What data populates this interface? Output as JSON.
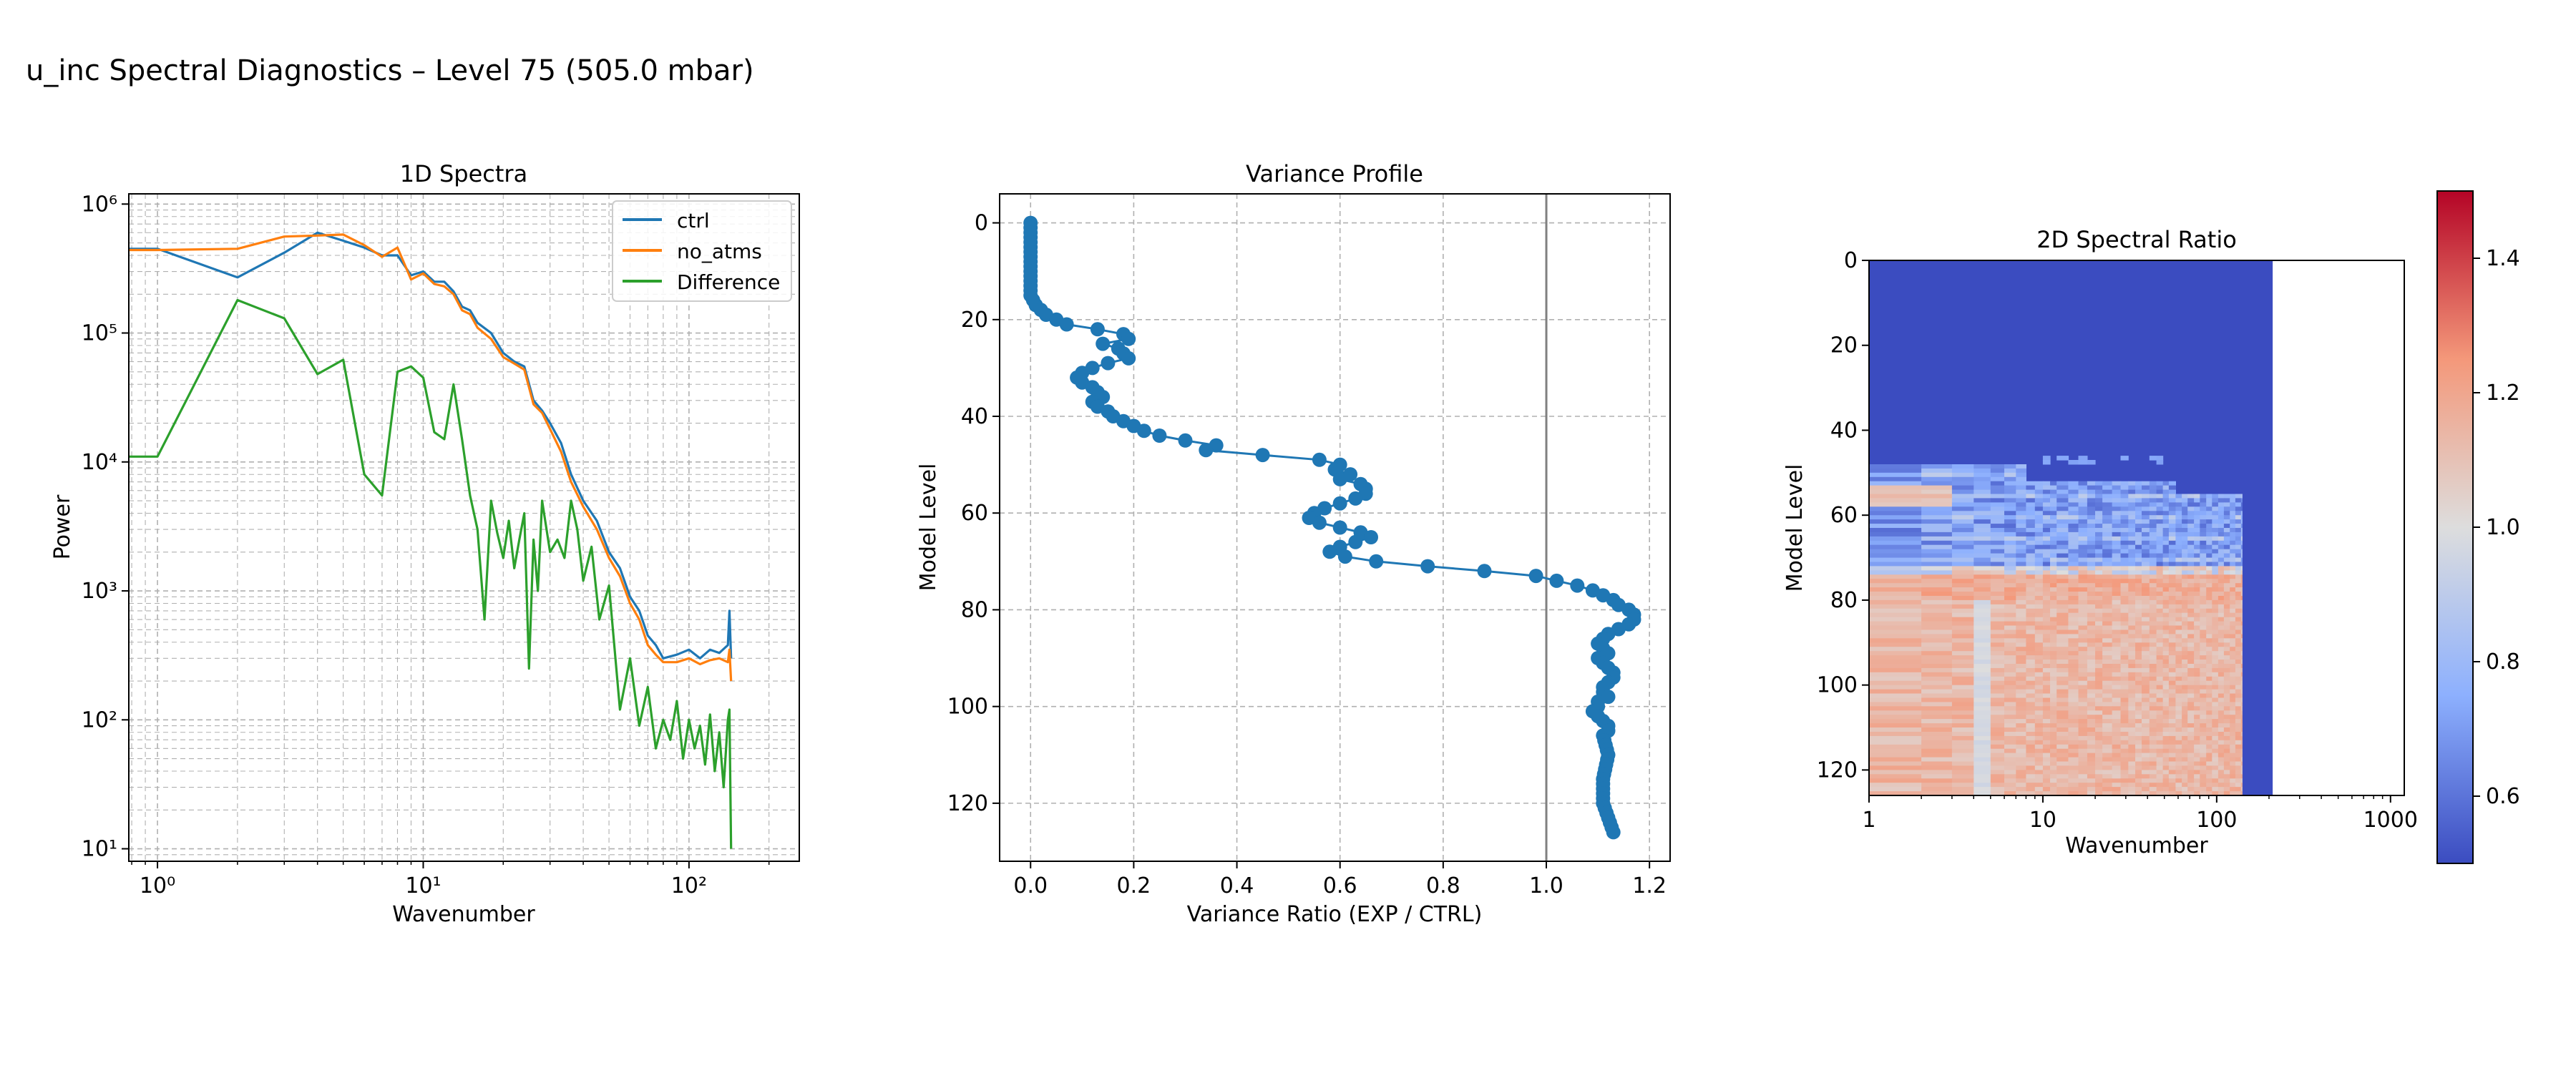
{
  "figure": {
    "title": "u_inc Spectral Diagnostics – Level 75 (505.0 mbar)"
  },
  "colors": {
    "ctrl": "#1f77b4",
    "no_atms": "#ff7f0e",
    "difference": "#2ca02c",
    "profile": "#1f77b4",
    "grid": "#b0b0b0",
    "colormap": "coolwarm"
  },
  "chart_data": [
    {
      "id": "spectra1d",
      "type": "line",
      "title": "1D Spectra",
      "xlabel": "Wavenumber",
      "ylabel": "Power",
      "xscale": "log",
      "yscale": "log",
      "xlim": [
        0.78,
        260
      ],
      "ylim": [
        8,
        1200000
      ],
      "xticks": [
        1,
        10,
        100
      ],
      "xtick_labels": [
        "10⁰",
        "10¹",
        "10²"
      ],
      "yticks": [
        10,
        100,
        1000,
        10000,
        100000,
        1000000
      ],
      "ytick_labels": [
        "10¹",
        "10²",
        "10³",
        "10⁴",
        "10⁵",
        "10⁶"
      ],
      "grid": "major+minor",
      "legend": "upper-right",
      "series": [
        {
          "name": "ctrl",
          "color_key": "ctrl",
          "x": [
            0.78,
            1,
            2,
            3,
            4,
            5,
            6,
            7,
            8,
            9,
            10,
            11,
            12,
            13,
            14,
            15,
            16,
            18,
            20,
            22,
            24,
            26,
            28,
            30,
            33,
            36,
            40,
            45,
            50,
            55,
            60,
            65,
            70,
            75,
            80,
            90,
            100,
            110,
            120,
            130,
            140,
            142,
            144
          ],
          "y": [
            450000,
            450000,
            270000,
            420000,
            600000,
            520000,
            460000,
            400000,
            400000,
            280000,
            300000,
            250000,
            250000,
            210000,
            160000,
            150000,
            120000,
            100000,
            70000,
            60000,
            55000,
            30000,
            25000,
            20000,
            14000,
            8000,
            5000,
            3500,
            2000,
            1500,
            900,
            700,
            450,
            380,
            300,
            320,
            350,
            300,
            350,
            330,
            380,
            700,
            300
          ]
        },
        {
          "name": "no_atms",
          "color_key": "no_atms",
          "x": [
            0.78,
            1,
            2,
            3,
            4,
            5,
            6,
            7,
            8,
            9,
            10,
            11,
            12,
            13,
            14,
            15,
            16,
            18,
            20,
            22,
            24,
            26,
            28,
            30,
            33,
            36,
            40,
            45,
            50,
            55,
            60,
            65,
            70,
            75,
            80,
            90,
            100,
            110,
            120,
            130,
            140,
            142,
            144
          ],
          "y": [
            440000,
            440000,
            450000,
            560000,
            570000,
            580000,
            480000,
            390000,
            460000,
            260000,
            290000,
            240000,
            230000,
            200000,
            150000,
            140000,
            110000,
            90000,
            65000,
            58000,
            52000,
            28000,
            24000,
            18000,
            12000,
            7000,
            4500,
            3000,
            1800,
            1300,
            800,
            600,
            380,
            320,
            280,
            280,
            300,
            270,
            290,
            300,
            280,
            350,
            200
          ]
        },
        {
          "name": "Difference",
          "color_key": "difference",
          "x": [
            0.78,
            1,
            2,
            3,
            4,
            5,
            6,
            7,
            8,
            9,
            10,
            11,
            12,
            13,
            14,
            15,
            16,
            17,
            18,
            19,
            20,
            21,
            22,
            23,
            24,
            25,
            26,
            27,
            28,
            30,
            32,
            34,
            36,
            38,
            40,
            43,
            46,
            50,
            55,
            60,
            65,
            70,
            75,
            80,
            85,
            90,
            95,
            100,
            105,
            110,
            115,
            120,
            125,
            130,
            135,
            140,
            142,
            144
          ],
          "y": [
            11000,
            11000,
            180000,
            130000,
            48000,
            62000,
            8000,
            5500,
            50000,
            55000,
            45000,
            17000,
            15000,
            40000,
            15000,
            5500,
            3000,
            600,
            5000,
            2800,
            1800,
            3500,
            1500,
            2500,
            4000,
            250,
            2500,
            1000,
            5000,
            2000,
            2500,
            1800,
            5000,
            3000,
            1200,
            2200,
            600,
            1100,
            120,
            300,
            90,
            180,
            60,
            100,
            70,
            140,
            50,
            100,
            60,
            90,
            45,
            110,
            40,
            80,
            30,
            100,
            120,
            10
          ]
        }
      ]
    },
    {
      "id": "variance_profile",
      "type": "line",
      "title": "Variance Profile",
      "xlabel": "Variance Ratio (EXP / CTRL)",
      "ylabel": "Model Level",
      "xlim": [
        -0.06,
        1.24
      ],
      "ylim": [
        132,
        -6
      ],
      "y_inverted": true,
      "xticks": [
        0,
        0.2,
        0.4,
        0.6,
        0.8,
        1.0,
        1.2
      ],
      "xtick_labels": [
        "0.0",
        "0.2",
        "0.4",
        "0.6",
        "0.8",
        "1.0",
        "1.2"
      ],
      "yticks": [
        0,
        20,
        40,
        60,
        80,
        100,
        120
      ],
      "ytick_labels": [
        "0",
        "20",
        "40",
        "60",
        "80",
        "100",
        "120"
      ],
      "grid": "dashed",
      "reference_line_x": 1.0,
      "markers": true,
      "anchors": {
        "level": [
          0,
          5,
          10,
          15,
          17,
          19,
          20,
          21,
          22,
          23,
          24,
          25,
          26,
          27,
          28,
          29,
          30,
          31,
          32,
          33,
          34,
          35,
          36,
          37,
          38,
          39,
          40,
          41,
          42,
          43,
          44,
          45,
          46,
          47,
          48,
          49,
          50,
          51,
          52,
          53,
          54,
          55,
          56,
          57,
          58,
          59,
          60,
          61,
          62,
          63,
          64,
          65,
          66,
          67,
          68,
          69,
          70,
          71,
          72,
          73,
          74,
          75,
          76,
          77,
          78,
          79,
          80,
          81,
          82,
          83,
          84,
          85,
          86,
          87,
          88,
          89,
          90,
          91,
          92,
          93,
          94,
          95,
          96,
          97,
          98,
          99,
          100,
          101,
          102,
          103,
          104,
          105,
          106,
          110,
          115,
          120,
          123,
          126
        ],
        "ratio": [
          0.0,
          0.0,
          0.0,
          0.0,
          0.01,
          0.03,
          0.05,
          0.07,
          0.13,
          0.18,
          0.19,
          0.14,
          0.17,
          0.18,
          0.19,
          0.15,
          0.12,
          0.1,
          0.09,
          0.1,
          0.12,
          0.13,
          0.14,
          0.12,
          0.13,
          0.15,
          0.16,
          0.18,
          0.2,
          0.22,
          0.25,
          0.3,
          0.36,
          0.34,
          0.45,
          0.56,
          0.6,
          0.59,
          0.62,
          0.6,
          0.64,
          0.65,
          0.65,
          0.63,
          0.6,
          0.57,
          0.55,
          0.54,
          0.56,
          0.6,
          0.64,
          0.66,
          0.63,
          0.6,
          0.58,
          0.61,
          0.67,
          0.77,
          0.88,
          0.98,
          1.02,
          1.06,
          1.09,
          1.11,
          1.13,
          1.14,
          1.16,
          1.17,
          1.17,
          1.16,
          1.14,
          1.12,
          1.11,
          1.1,
          1.11,
          1.12,
          1.1,
          1.11,
          1.12,
          1.13,
          1.13,
          1.12,
          1.11,
          1.11,
          1.12,
          1.1,
          1.1,
          1.09,
          1.1,
          1.11,
          1.12,
          1.12,
          1.11,
          1.12,
          1.11,
          1.11,
          1.12,
          1.13
        ]
      }
    },
    {
      "id": "spectral_ratio_2d",
      "type": "heatmap",
      "title": "2D Spectral Ratio",
      "xlabel": "Wavenumber",
      "ylabel": "Model Level",
      "xscale": "log",
      "xlim": [
        1,
        1200
      ],
      "ylim": [
        126,
        0
      ],
      "xticks": [
        1,
        10,
        100,
        1000
      ],
      "xtick_labels": [
        "1",
        "10",
        "100",
        "1000"
      ],
      "yticks": [
        0,
        20,
        40,
        60,
        80,
        100,
        120
      ],
      "ytick_labels": [
        "0",
        "20",
        "40",
        "60",
        "80",
        "100",
        "120"
      ],
      "data_extent_wavenumber": 210,
      "mask_value": 0.5,
      "colorbar": {
        "vmin": 0.5,
        "vmax": 1.5,
        "ticks": [
          0.6,
          0.8,
          1.0,
          1.2,
          1.4
        ],
        "tick_labels": [
          "0.6",
          "0.8",
          "1.0",
          "1.2",
          "1.4"
        ]
      },
      "regions": [
        {
          "levels": [
            0,
            48
          ],
          "ratio": 0.5
        },
        {
          "levels": [
            48,
            72
          ],
          "ratio": 0.66
        },
        {
          "levels": [
            72,
            80
          ],
          "ratio": 1.22
        },
        {
          "levels": [
            80,
            126
          ],
          "ratio": 1.13
        }
      ]
    }
  ]
}
